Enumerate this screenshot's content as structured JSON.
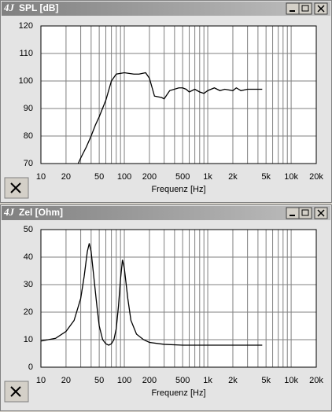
{
  "icon_text": "4J",
  "chart_data": [
    {
      "type": "line",
      "title": "SPL [dB]",
      "xlabel": "Frequenz [Hz]",
      "xscale": "log",
      "grid": true,
      "xlim": [
        10,
        20000
      ],
      "ylim": [
        70,
        120
      ],
      "xticks": [
        10,
        20,
        50,
        100,
        200,
        500,
        {
          "value": 1000,
          "label": "1k"
        },
        {
          "value": 2000,
          "label": "2k"
        },
        {
          "value": 5000,
          "label": "5k"
        },
        {
          "value": 10000,
          "label": "10k"
        },
        {
          "value": 20000,
          "label": "20k"
        }
      ],
      "xgrid": [
        10,
        20,
        30,
        40,
        50,
        60,
        70,
        80,
        90,
        100,
        200,
        300,
        400,
        500,
        600,
        700,
        800,
        900,
        1000,
        2000,
        3000,
        4000,
        5000,
        6000,
        7000,
        8000,
        9000,
        10000,
        20000
      ],
      "yticks": [
        70,
        80,
        90,
        100,
        110,
        120
      ],
      "series": [
        {
          "color": "#000000",
          "x": [
            28,
            30,
            35,
            40,
            45,
            50,
            60,
            70,
            80,
            100,
            130,
            150,
            180,
            200,
            230,
            280,
            300,
            350,
            450,
            500,
            550,
            600,
            700,
            800,
            900,
            1000,
            1200,
            1400,
            1600,
            2000,
            2200,
            2500,
            3000,
            3500,
            4000,
            4500
          ],
          "values": [
            70,
            72,
            76,
            80,
            84,
            87,
            93,
            100,
            102.5,
            103,
            102.5,
            102.5,
            103,
            101,
            94.5,
            94,
            93.5,
            96.5,
            97.5,
            97.5,
            97,
            96,
            97,
            96,
            95.5,
            96.5,
            97.5,
            96.5,
            97,
            96.5,
            97.5,
            96.5,
            97,
            97,
            97,
            97
          ]
        }
      ]
    },
    {
      "type": "line",
      "title": "Zel [Ohm]",
      "xlabel": "Frequenz [Hz]",
      "xscale": "log",
      "grid": true,
      "xlim": [
        10,
        20000
      ],
      "ylim": [
        0,
        50
      ],
      "xticks": [
        10,
        20,
        50,
        100,
        200,
        500,
        {
          "value": 1000,
          "label": "1k"
        },
        {
          "value": 2000,
          "label": "2k"
        },
        {
          "value": 5000,
          "label": "5k"
        },
        {
          "value": 10000,
          "label": "10k"
        },
        {
          "value": 20000,
          "label": "20k"
        }
      ],
      "xgrid": [
        10,
        20,
        30,
        40,
        50,
        60,
        70,
        80,
        90,
        100,
        200,
        300,
        400,
        500,
        600,
        700,
        800,
        900,
        1000,
        2000,
        3000,
        4000,
        5000,
        6000,
        7000,
        8000,
        9000,
        10000,
        20000
      ],
      "yticks": [
        0,
        10,
        20,
        30,
        40,
        50
      ],
      "series": [
        {
          "color": "#000000",
          "x": [
            10,
            15,
            20,
            25,
            30,
            33,
            36,
            38,
            40,
            43,
            47,
            50,
            55,
            60,
            65,
            70,
            75,
            80,
            85,
            90,
            95,
            100,
            110,
            120,
            140,
            170,
            200,
            300,
            500,
            1000,
            2000,
            4500
          ],
          "values": [
            9.5,
            10.5,
            13,
            17,
            25,
            33,
            42,
            45,
            42,
            33,
            22,
            15,
            10,
            8.5,
            8,
            8.5,
            10,
            14,
            22,
            32,
            39,
            36,
            25,
            17,
            12,
            10,
            9,
            8.3,
            8,
            8,
            8,
            8
          ]
        }
      ]
    }
  ]
}
